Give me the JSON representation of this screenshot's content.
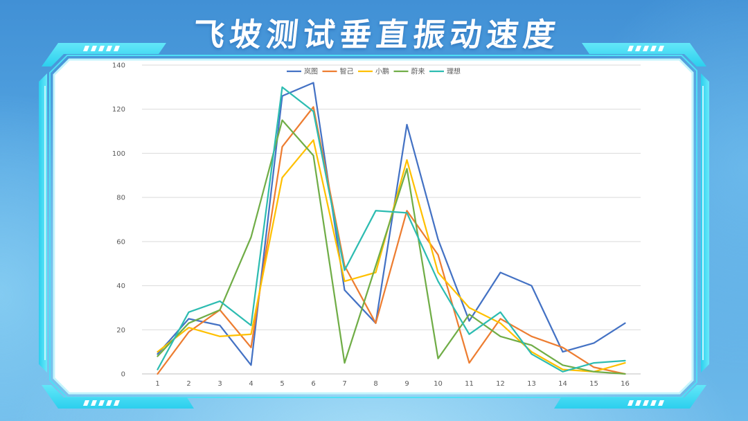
{
  "chart_data": {
    "type": "line",
    "title": "飞坡测试垂直振动速度",
    "categories": [
      "1",
      "2",
      "3",
      "4",
      "5",
      "6",
      "7",
      "8",
      "9",
      "10",
      "11",
      "12",
      "13",
      "14",
      "15",
      "16"
    ],
    "yticks": [
      0,
      20,
      40,
      60,
      80,
      100,
      120,
      140
    ],
    "ylim": [
      0,
      140
    ],
    "grid": true,
    "legend_position": "top-center",
    "series": [
      {
        "name": "岚图",
        "color": "#4472C4",
        "values": [
          9,
          25,
          22,
          4,
          126,
          132,
          38,
          23,
          113,
          61,
          24,
          46,
          40,
          10,
          14,
          23
        ]
      },
      {
        "name": "智己",
        "color": "#ED7D31",
        "values": [
          0,
          19,
          29,
          12,
          103,
          121,
          49,
          23,
          74,
          54,
          5,
          25,
          17,
          12,
          3,
          0
        ]
      },
      {
        "name": "小鹏",
        "color": "#FFC000",
        "values": [
          10,
          21,
          17,
          18,
          89,
          106,
          42,
          46,
          97,
          46,
          30,
          23,
          10,
          2,
          1,
          5
        ]
      },
      {
        "name": "蔚来",
        "color": "#70AD47",
        "values": [
          8,
          23,
          29,
          62,
          115,
          99,
          5,
          49,
          93,
          7,
          27,
          17,
          13,
          4,
          1,
          0
        ]
      },
      {
        "name": "理想",
        "color": "#2DBCB1",
        "values": [
          2,
          28,
          33,
          22,
          130,
          119,
          47,
          74,
          73,
          42,
          18,
          28,
          9,
          1,
          5,
          6
        ]
      }
    ]
  },
  "theme": {
    "background": "#4f9fdd",
    "frame_accent": "#3fdcf2",
    "panel": "#ffffff",
    "gridline": "#d9d9d9",
    "axis_line": "#bfbfbf",
    "tick_text": "#595959"
  }
}
